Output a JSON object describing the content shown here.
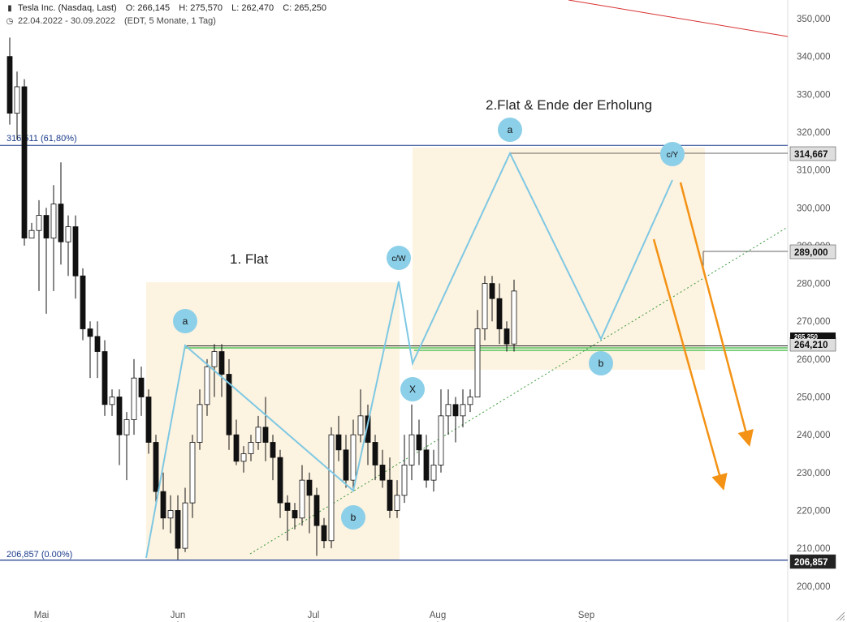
{
  "header": {
    "icon": "candlestick-chart-icon",
    "instrument": "Tesla Inc. (Nasdaq, Last)",
    "open": "O: 266,145",
    "high": "H: 275,570",
    "low": "L: 262,470",
    "close": "C: 265,250",
    "clock_icon": "clock-icon",
    "period": "22.04.2022 - 30.09.2022",
    "meta": "(EDT, 5 Monate, 1 Tag)"
  },
  "chart_data": {
    "type": "candlestick",
    "title": "",
    "ylim": [
      190000,
      357000
    ],
    "y_ticks": [
      "200,000",
      "210,000",
      "220,000",
      "230,000",
      "240,000",
      "250,000",
      "260,000",
      "270,000",
      "280,000",
      "290,000",
      "300,000",
      "310,000",
      "320,000",
      "330,000",
      "340,000",
      "350,000"
    ],
    "y_tick_values": [
      200000,
      210000,
      220000,
      230000,
      240000,
      250000,
      260000,
      270000,
      280000,
      290000,
      300000,
      310000,
      320000,
      330000,
      340000,
      350000
    ],
    "x_labels": [
      "Mai",
      "Jun",
      "Jul",
      "Aug",
      "Sep"
    ],
    "x_label_index": [
      6,
      24,
      43,
      60,
      80
    ],
    "candles": [
      [
        340,
        325,
        345,
        322
      ],
      [
        325,
        332,
        336,
        318
      ],
      [
        332,
        292,
        334,
        290
      ],
      [
        292,
        294,
        296,
        292
      ],
      [
        294,
        298,
        302,
        278
      ],
      [
        298,
        292,
        300,
        272
      ],
      [
        292,
        301,
        306,
        278
      ],
      [
        301,
        291,
        312,
        285
      ],
      [
        291,
        295,
        298,
        282
      ],
      [
        295,
        282,
        298,
        276
      ],
      [
        282,
        268,
        284,
        265
      ],
      [
        268,
        266,
        270,
        255
      ],
      [
        266,
        262,
        270,
        255
      ],
      [
        262,
        248,
        265,
        245
      ],
      [
        248,
        250,
        252,
        245
      ],
      [
        250,
        240,
        252,
        232
      ],
      [
        240,
        244,
        246,
        228
      ],
      [
        244,
        255,
        260,
        240
      ],
      [
        255,
        250,
        258,
        245
      ],
      [
        250,
        238,
        252,
        235
      ],
      [
        238,
        225,
        240,
        222
      ],
      [
        225,
        218,
        230,
        215
      ],
      [
        218,
        220,
        224,
        214
      ],
      [
        220,
        210,
        224,
        207
      ],
      [
        210,
        222,
        226,
        209
      ],
      [
        222,
        238,
        240,
        218
      ],
      [
        238,
        248,
        252,
        236
      ],
      [
        248,
        258,
        260,
        245
      ],
      [
        258,
        262,
        264,
        250
      ],
      [
        262,
        256,
        264,
        250
      ],
      [
        256,
        240,
        260,
        236
      ],
      [
        240,
        233,
        244,
        232
      ],
      [
        233,
        235,
        237,
        230
      ],
      [
        235,
        238,
        240,
        233
      ],
      [
        238,
        242,
        245,
        236
      ],
      [
        242,
        238,
        250,
        233
      ],
      [
        238,
        234,
        240,
        228
      ],
      [
        234,
        222,
        236,
        218
      ],
      [
        222,
        220,
        224,
        212
      ],
      [
        220,
        218,
        222,
        215
      ],
      [
        218,
        228,
        232,
        216
      ],
      [
        228,
        224,
        230,
        214
      ],
      [
        224,
        216,
        226,
        208
      ],
      [
        216,
        212,
        218,
        210
      ],
      [
        212,
        240,
        242,
        210
      ],
      [
        240,
        236,
        245,
        233
      ],
      [
        236,
        228,
        240,
        226
      ],
      [
        228,
        240,
        244,
        225
      ],
      [
        240,
        245,
        252,
        238
      ],
      [
        245,
        238,
        248,
        232
      ],
      [
        238,
        232,
        240,
        228
      ],
      [
        232,
        228,
        236,
        226
      ],
      [
        228,
        220,
        234,
        218
      ],
      [
        220,
        224,
        228,
        218
      ],
      [
        224,
        232,
        240,
        222
      ],
      [
        232,
        240,
        248,
        228
      ],
      [
        240,
        236,
        244,
        232
      ],
      [
        236,
        228,
        240,
        226
      ],
      [
        228,
        232,
        236,
        225
      ],
      [
        232,
        245,
        252,
        230
      ],
      [
        245,
        248,
        252,
        240
      ],
      [
        248,
        245,
        250,
        238
      ],
      [
        245,
        248,
        252,
        242
      ],
      [
        248,
        250,
        252,
        246
      ],
      [
        250,
        268,
        273,
        250
      ],
      [
        268,
        280,
        282,
        265
      ],
      [
        280,
        276,
        282,
        270
      ],
      [
        276,
        268,
        280,
        264
      ],
      [
        268,
        264,
        270,
        262
      ],
      [
        264,
        278,
        281,
        262
      ]
    ],
    "levels": [
      {
        "label": "316,511 (61,80%)",
        "value": 316511,
        "color": "#1a3a8a"
      },
      {
        "label": "206,857 (0.00%)",
        "value": 206857,
        "color": "#1a3a8a"
      }
    ],
    "price_tags": [
      "314,667",
      "289,000",
      "264,210",
      "206,857"
    ],
    "last_price_tag": "265,250",
    "annotations": [
      {
        "text": "1. Flat"
      },
      {
        "text": "2.Flat & Ende der Erholung"
      }
    ],
    "wave_labels": [
      "a",
      "b",
      "c/W",
      "X",
      "a",
      "b",
      "c/Y"
    ],
    "colors": {
      "candle_up": "#ffffff",
      "candle_down": "#111111",
      "wave": "#7ec8e3",
      "bubble": "#8ccfe8",
      "zone": "#fdf3e1",
      "arrow": "#f39214",
      "fib": "#1a3a8a",
      "support_green": "#7fd07f",
      "trend_red": "#d93030",
      "trend_dotted": "#3a9a3a",
      "axis_text": "#555555"
    }
  }
}
